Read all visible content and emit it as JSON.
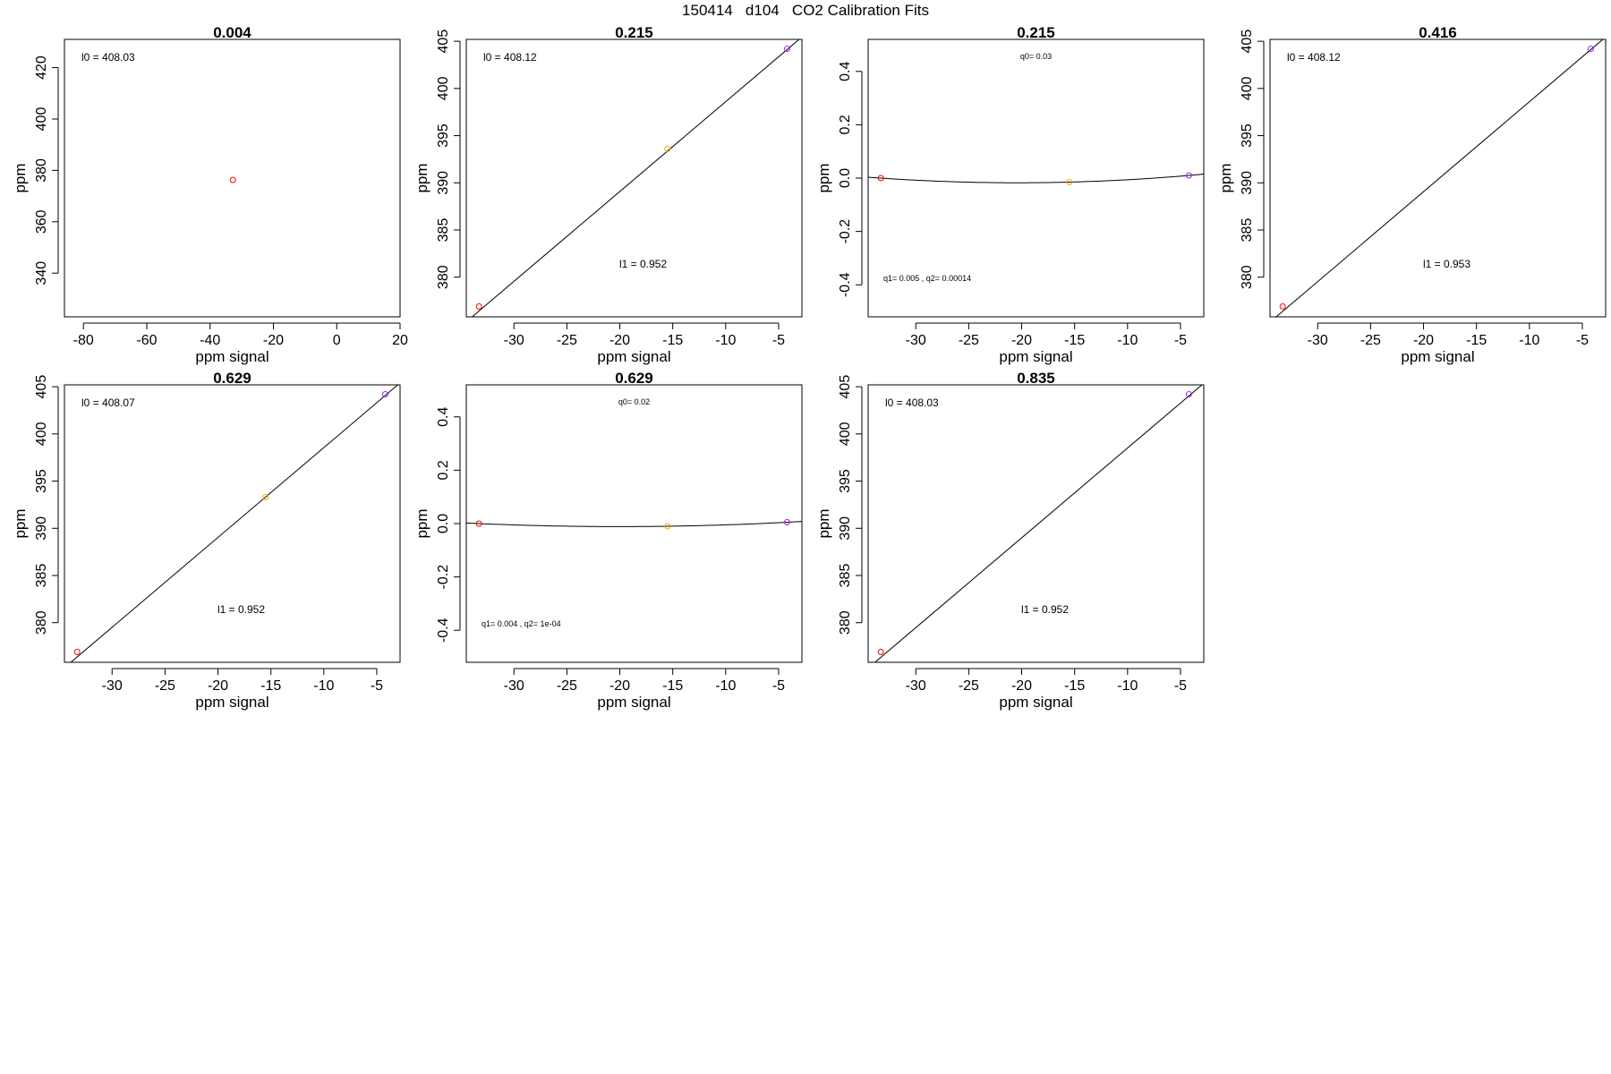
{
  "figure_title": "150414   d104   CO2 Calibration Fits",
  "chart_data": [
    {
      "type": "scatter",
      "title": "0.004",
      "xlabel": "ppm signal",
      "ylabel": "ppm",
      "xlim": [
        -86,
        20
      ],
      "ylim": [
        323,
        431
      ],
      "xticks": [
        "-80",
        "-60",
        "-40",
        "-20",
        "0",
        "20"
      ],
      "yticks": [
        "340",
        "360",
        "380",
        "400",
        "420"
      ],
      "points": [
        {
          "x": -32.8,
          "y": 376.3,
          "color": "#ff0000"
        }
      ],
      "fit": null,
      "annotations": [
        {
          "text": "l0 =  408.03",
          "pos": "top-left",
          "size": "normal"
        }
      ]
    },
    {
      "type": "scatter",
      "title": "0.215",
      "xlabel": "ppm signal",
      "ylabel": "ppm",
      "xlim": [
        -34.5,
        -2.8
      ],
      "ylim": [
        375.8,
        405.2
      ],
      "xticks": [
        "-30",
        "-25",
        "-20",
        "-15",
        "-10",
        "-5"
      ],
      "yticks": [
        "380",
        "385",
        "390",
        "395",
        "400",
        "405"
      ],
      "points": [
        {
          "x": -33.3,
          "y": 376.9,
          "color": "#ff0000"
        },
        {
          "x": -15.5,
          "y": 393.6,
          "color": "#ffa500"
        },
        {
          "x": -4.2,
          "y": 404.2,
          "color": "#a020f0"
        }
      ],
      "fit": {
        "kind": "linear",
        "intercept": 408.12,
        "slope": 0.952
      },
      "annotations": [
        {
          "text": "l0 =  408.12",
          "pos": "top-left",
          "size": "normal"
        },
        {
          "text": "l1 =  0.952",
          "pos": "bottom-center",
          "size": "normal"
        }
      ]
    },
    {
      "type": "scatter",
      "title": "0.215",
      "xlabel": "ppm signal",
      "ylabel": "ppm",
      "xlim": [
        -34.5,
        -2.8
      ],
      "ylim": [
        -0.52,
        0.52
      ],
      "xticks": [
        "-30",
        "-25",
        "-20",
        "-15",
        "-10",
        "-5"
      ],
      "yticks": [
        "-0.4",
        "-0.2",
        "0.0",
        "0.2",
        "0.4"
      ],
      "points": [
        {
          "x": -33.3,
          "y": 0.0,
          "color": "#ff0000"
        },
        {
          "x": -15.5,
          "y": -0.015,
          "color": "#ffa500"
        },
        {
          "x": -4.2,
          "y": 0.01,
          "color": "#a020f0"
        }
      ],
      "fit": {
        "kind": "quadratic",
        "q0": 0.03,
        "q1": 0.005,
        "q2": 0.00014
      },
      "annotations": [
        {
          "text": "q0= 0.03",
          "pos": "top-center",
          "size": "small"
        },
        {
          "text": "q1= 0.005 , q2= 0.00014",
          "pos": "bottom-left",
          "size": "small"
        }
      ]
    },
    {
      "type": "scatter",
      "title": "0.416",
      "xlabel": "ppm signal",
      "ylabel": "ppm",
      "xlim": [
        -34.5,
        -2.8
      ],
      "ylim": [
        375.8,
        405.2
      ],
      "xticks": [
        "-30",
        "-25",
        "-20",
        "-15",
        "-10",
        "-5"
      ],
      "yticks": [
        "380",
        "385",
        "390",
        "395",
        "400",
        "405"
      ],
      "points": [
        {
          "x": -33.3,
          "y": 376.9,
          "color": "#ff0000"
        },
        {
          "x": -4.2,
          "y": 404.2,
          "color": "#a020f0"
        }
      ],
      "fit": {
        "kind": "linear",
        "intercept": 408.12,
        "slope": 0.953
      },
      "annotations": [
        {
          "text": "l0 =  408.12",
          "pos": "top-left",
          "size": "normal"
        },
        {
          "text": "l1 =  0.953",
          "pos": "bottom-center",
          "size": "normal"
        }
      ]
    },
    {
      "type": "scatter",
      "title": "0.629",
      "xlabel": "ppm signal",
      "ylabel": "ppm",
      "xlim": [
        -34.5,
        -2.8
      ],
      "ylim": [
        375.8,
        405.2
      ],
      "xticks": [
        "-30",
        "-25",
        "-20",
        "-15",
        "-10",
        "-5"
      ],
      "yticks": [
        "380",
        "385",
        "390",
        "395",
        "400",
        "405"
      ],
      "points": [
        {
          "x": -33.3,
          "y": 376.9,
          "color": "#ff0000"
        },
        {
          "x": -15.5,
          "y": 393.3,
          "color": "#ffa500"
        },
        {
          "x": -4.2,
          "y": 404.2,
          "color": "#a020f0"
        }
      ],
      "fit": {
        "kind": "linear",
        "intercept": 408.07,
        "slope": 0.952
      },
      "annotations": [
        {
          "text": "l0 =  408.07",
          "pos": "top-left",
          "size": "normal"
        },
        {
          "text": "l1 =  0.952",
          "pos": "bottom-center",
          "size": "normal"
        }
      ]
    },
    {
      "type": "scatter",
      "title": "0.629",
      "xlabel": "ppm signal",
      "ylabel": "ppm",
      "xlim": [
        -34.5,
        -2.8
      ],
      "ylim": [
        -0.52,
        0.52
      ],
      "xticks": [
        "-30",
        "-25",
        "-20",
        "-15",
        "-10",
        "-5"
      ],
      "yticks": [
        "-0.4",
        "-0.2",
        "0.0",
        "0.2",
        "0.4"
      ],
      "points": [
        {
          "x": -33.3,
          "y": 0.0,
          "color": "#ff0000"
        },
        {
          "x": -15.5,
          "y": -0.01,
          "color": "#ffa500"
        },
        {
          "x": -4.2,
          "y": 0.005,
          "color": "#a020f0"
        }
      ],
      "fit": {
        "kind": "quadratic",
        "q0": 0.02,
        "q1": 0.004,
        "q2": 0.0001
      },
      "annotations": [
        {
          "text": "q0= 0.02",
          "pos": "top-center",
          "size": "small"
        },
        {
          "text": "q1= 0.004 , q2= 1e-04",
          "pos": "bottom-left",
          "size": "small"
        }
      ]
    },
    {
      "type": "scatter",
      "title": "0.835",
      "xlabel": "ppm signal",
      "ylabel": "ppm",
      "xlim": [
        -34.5,
        -2.8
      ],
      "ylim": [
        375.8,
        405.2
      ],
      "xticks": [
        "-30",
        "-25",
        "-20",
        "-15",
        "-10",
        "-5"
      ],
      "yticks": [
        "380",
        "385",
        "390",
        "395",
        "400",
        "405"
      ],
      "points": [
        {
          "x": -33.3,
          "y": 376.9,
          "color": "#ff0000"
        },
        {
          "x": -4.2,
          "y": 404.2,
          "color": "#a020f0"
        }
      ],
      "fit": {
        "kind": "linear",
        "intercept": 408.03,
        "slope": 0.952
      },
      "annotations": [
        {
          "text": "l0 =  408.03",
          "pos": "top-left",
          "size": "normal"
        },
        {
          "text": "l1 =  0.952",
          "pos": "bottom-center",
          "size": "normal"
        }
      ]
    }
  ]
}
